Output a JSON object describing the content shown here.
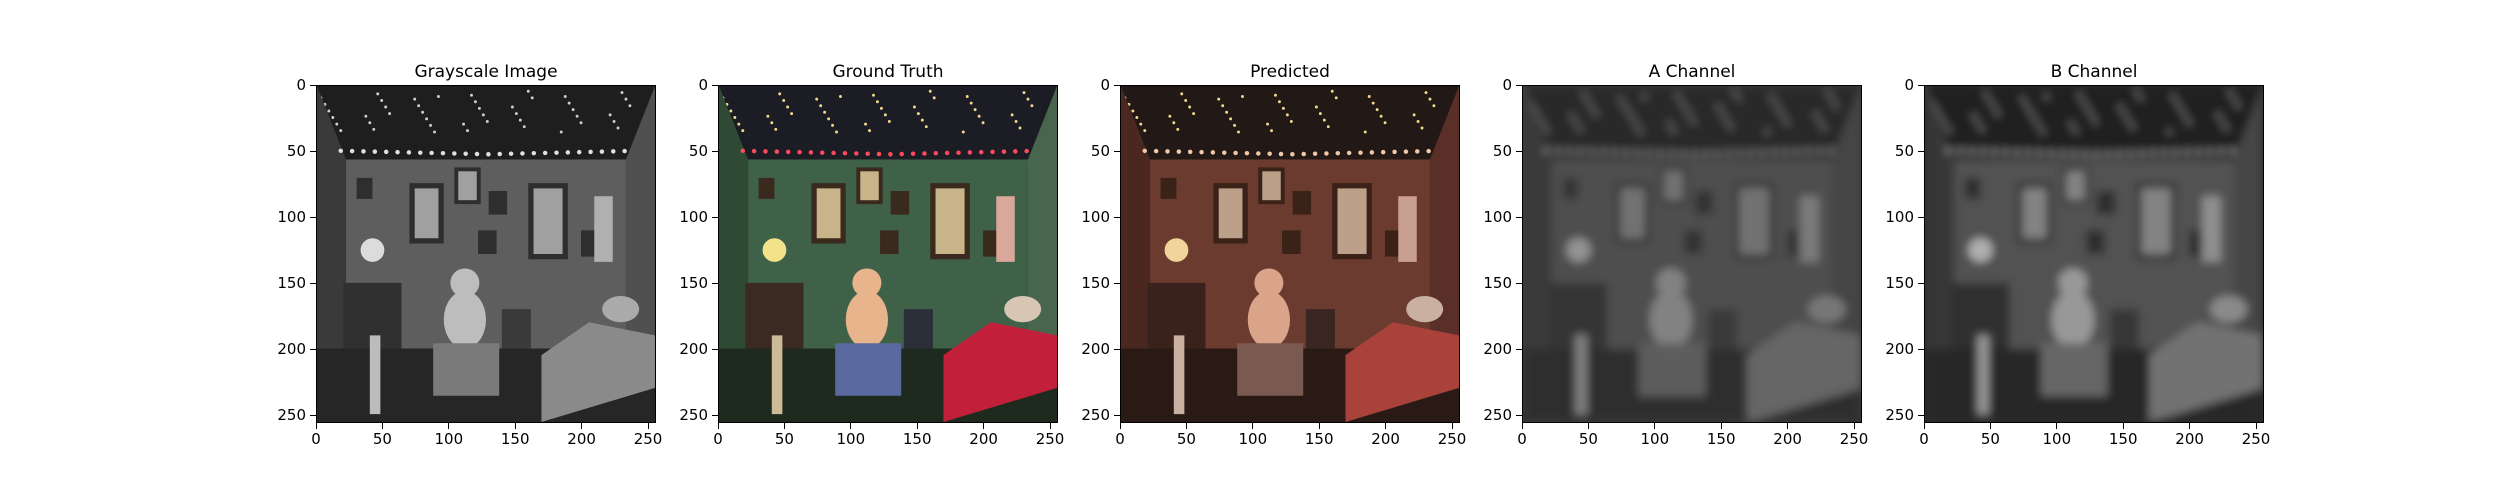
{
  "figure": {
    "panels": [
      {
        "title": "Grayscale Image",
        "mode": "gray"
      },
      {
        "title": "Ground Truth",
        "mode": "color"
      },
      {
        "title": "Predicted",
        "mode": "pred"
      },
      {
        "title": "A Channel",
        "mode": "blurA"
      },
      {
        "title": "B Channel",
        "mode": "blurB"
      }
    ],
    "x_ticks": [
      "0",
      "50",
      "100",
      "150",
      "200",
      "250"
    ],
    "y_ticks": [
      "0",
      "50",
      "100",
      "150",
      "200",
      "250"
    ],
    "x_tick_values": [
      0,
      50,
      100,
      150,
      200,
      250
    ],
    "y_tick_values": [
      0,
      50,
      100,
      150,
      200,
      250
    ],
    "image_extent": [
      256,
      256
    ]
  }
}
